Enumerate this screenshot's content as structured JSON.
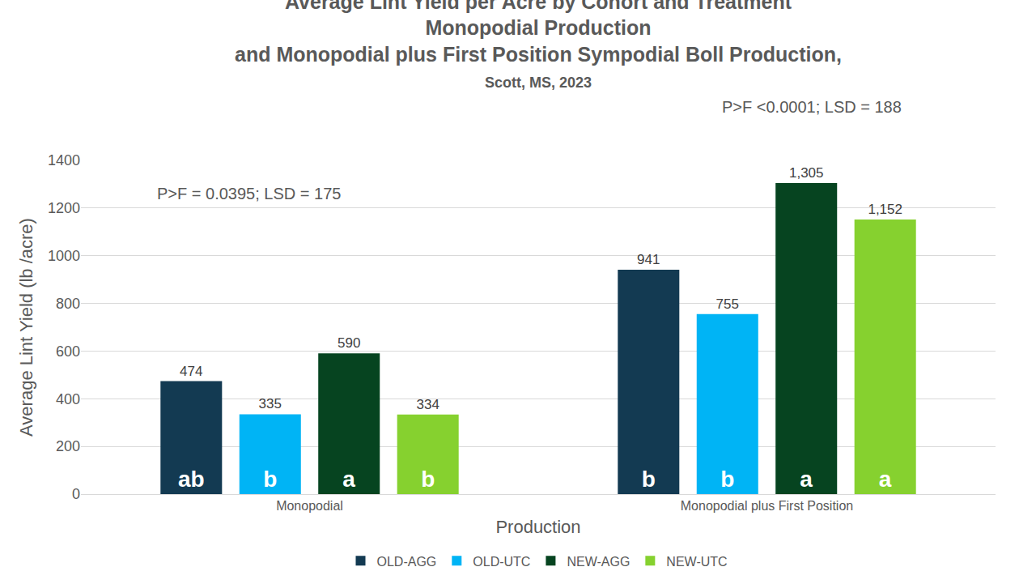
{
  "chart_data": {
    "type": "bar",
    "title": "Average Lint Yield per Acre by Cohort and Treatment\nMonopodial Production\nand Monopodial plus First Position Sympodial Boll Production,",
    "subtitle": "Scott, MS, 2023",
    "x_label": "Production",
    "y_label": "Average Lint Yield (lb /acre)",
    "categories": [
      "Monopodial",
      "Monopodial plus First Position"
    ],
    "annotations": [
      "P>F = 0.0395; LSD = 175",
      "P>F <0.0001; LSD = 188"
    ],
    "series": [
      {
        "name": "OLD-AGG",
        "color": "#133a52",
        "values": [
          474,
          941
        ],
        "value_labels": [
          "474",
          "941"
        ],
        "letters": [
          "ab",
          "b"
        ]
      },
      {
        "name": "OLD-UTC",
        "color": "#00b4f5",
        "values": [
          335,
          755
        ],
        "value_labels": [
          "335",
          "755"
        ],
        "letters": [
          "b",
          "b"
        ]
      },
      {
        "name": "NEW-AGG",
        "color": "#064420",
        "values": [
          590,
          1305
        ],
        "value_labels": [
          "590",
          "1,305"
        ],
        "letters": [
          "a",
          "a"
        ]
      },
      {
        "name": "NEW-UTC",
        "color": "#86d12f",
        "values": [
          334,
          1152
        ],
        "value_labels": [
          "334",
          "1,152"
        ],
        "letters": [
          "b",
          "a"
        ]
      }
    ],
    "ylim": [
      0,
      1400
    ],
    "yticks": [
      0,
      200,
      400,
      600,
      800,
      1000,
      1200,
      1400
    ],
    "grid": true,
    "legend": "bottom",
    "data_labels": true
  }
}
